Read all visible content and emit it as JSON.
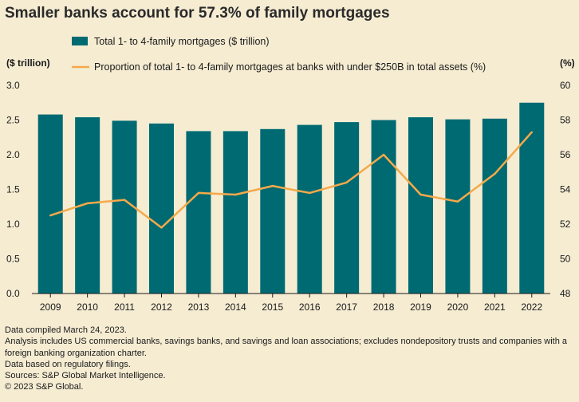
{
  "title": "Smaller banks account for 57.3% of family mortgages",
  "notes": [
    "Data compiled March 24, 2023.",
    "Analysis includes US commercial banks, savings banks, and savings and loan associations; excludes nondepository trusts and companies with a foreign banking organization charter.",
    "Data based on regulatory filings.",
    "Sources: S&P Global Market Intelligence.",
    "© 2023 S&P Global."
  ],
  "colors": {
    "bar": "#006a72",
    "line": "#f5a94a",
    "background": "#f5ecd2"
  },
  "chart_data": {
    "type": "bar+line",
    "categories": [
      "2009",
      "2010",
      "2011",
      "2012",
      "2013",
      "2014",
      "2015",
      "2016",
      "2017",
      "2018",
      "2019",
      "2020",
      "2021",
      "2022"
    ],
    "series": [
      {
        "name": "Total 1- to 4-family mortgages ($ trillion)",
        "type": "bar",
        "axis": "left",
        "values": [
          2.58,
          2.54,
          2.49,
          2.45,
          2.34,
          2.34,
          2.37,
          2.43,
          2.47,
          2.5,
          2.54,
          2.51,
          2.52,
          2.75
        ]
      },
      {
        "name": "Proportion of total 1- to 4-family mortgages at banks with under $250B in total assets (%)",
        "type": "line",
        "axis": "right",
        "values": [
          52.5,
          53.2,
          53.4,
          51.8,
          53.8,
          53.7,
          54.2,
          53.8,
          54.4,
          56.0,
          53.7,
          53.3,
          54.9,
          57.3
        ]
      }
    ],
    "y_left": {
      "label": "($ trillion)",
      "range": [
        0,
        3.0
      ],
      "ticks": [
        "0.0",
        "0.5",
        "1.0",
        "1.5",
        "2.0",
        "2.5",
        "3.0"
      ]
    },
    "y_right": {
      "label": "(%)",
      "range": [
        48,
        60
      ],
      "ticks": [
        "48",
        "50",
        "52",
        "54",
        "56",
        "58",
        "60"
      ]
    },
    "grid": false,
    "legend": "top"
  }
}
